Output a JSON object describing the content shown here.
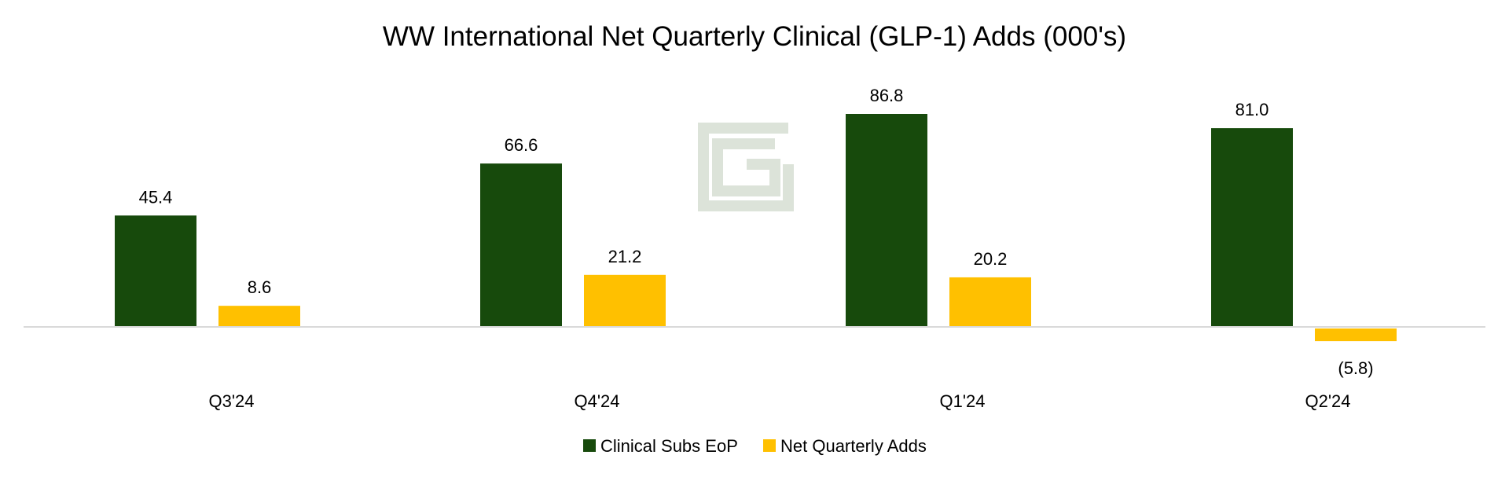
{
  "chart_data": {
    "type": "bar",
    "title": "WW International Net Quarterly Clinical (GLP-1) Adds (000's)",
    "categories": [
      "Q3'24",
      "Q4'24",
      "Q1'24",
      "Q2'24"
    ],
    "series": [
      {
        "name": "Clinical Subs EoP",
        "color": "#174A0C",
        "values": [
          45.4,
          66.6,
          86.8,
          81.0
        ],
        "labels": [
          "45.4",
          "66.6",
          "86.8",
          "81.0"
        ]
      },
      {
        "name": "Net Quarterly Adds",
        "color": "#FFC000",
        "values": [
          8.6,
          21.2,
          20.2,
          -5.8
        ],
        "labels": [
          "8.6",
          "21.2",
          "20.2",
          "(5.8)"
        ]
      }
    ],
    "xlabel": "",
    "ylabel": "",
    "ylim": [
      -5.8,
      86.8
    ],
    "grid": false,
    "legend": "bottom-center"
  },
  "colors": {
    "axis_line": "#D9D9D9",
    "watermark": "#DCE3D9"
  }
}
